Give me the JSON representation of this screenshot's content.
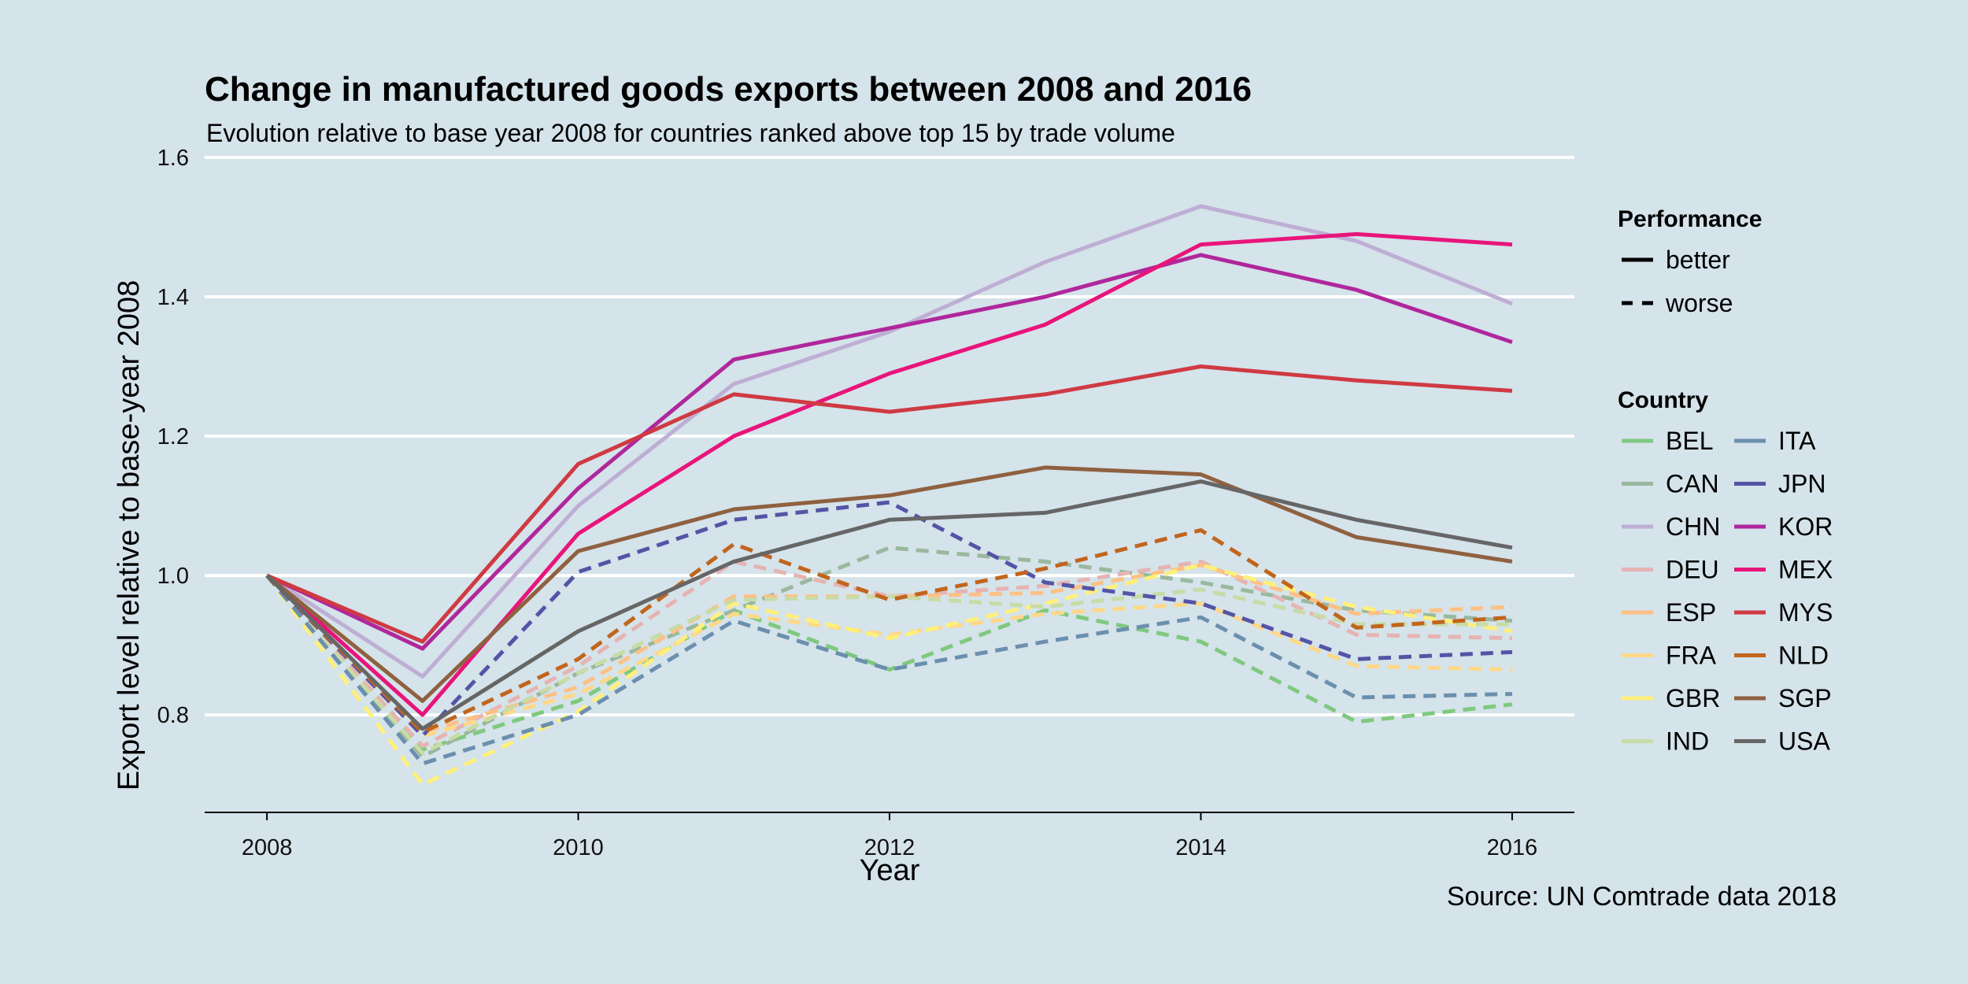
{
  "chart_data": {
    "type": "line",
    "title": "Change in manufactured goods exports between 2008 and 2016",
    "subtitle": "Evolution relative to base year 2008 for countries ranked above top 15 by trade volume",
    "caption": "Source: UN Comtrade data 2018",
    "xlabel": "Year",
    "ylabel": "Export level relative to base-year 2008",
    "xlim": [
      2007.6,
      2016.4
    ],
    "ylim": [
      0.66,
      1.6
    ],
    "x_ticks": [
      2008,
      2010,
      2012,
      2014,
      2016
    ],
    "y_ticks": [
      0.8,
      1.0,
      1.2,
      1.4,
      1.6
    ],
    "y_tick_labels": [
      "0.8",
      "1.0",
      "1.2",
      "1.4",
      "1.6"
    ],
    "grid": "horizontal",
    "legend_position": "right",
    "legend_performance": {
      "title": "Performance",
      "items": [
        {
          "label": "better",
          "style": "solid"
        },
        {
          "label": "worse",
          "style": "dashed"
        }
      ]
    },
    "legend_country_title": "Country",
    "x": [
      2008,
      2009,
      2010,
      2011,
      2012,
      2013,
      2014,
      2015,
      2016
    ],
    "series": [
      {
        "name": "BEL",
        "color": "#7fc97f",
        "style": "dashed",
        "values": [
          1.0,
          0.75,
          0.82,
          0.95,
          0.865,
          0.95,
          0.905,
          0.79,
          0.815
        ]
      },
      {
        "name": "CAN",
        "color": "#9ab89e",
        "style": "dashed",
        "values": [
          1.0,
          0.74,
          0.86,
          0.95,
          1.04,
          1.02,
          0.99,
          0.95,
          0.935
        ]
      },
      {
        "name": "CHN",
        "color": "#beaed4",
        "style": "solid",
        "values": [
          1.0,
          0.855,
          1.1,
          1.275,
          1.35,
          1.45,
          1.53,
          1.48,
          1.39
        ]
      },
      {
        "name": "DEU",
        "color": "#e6b3b3",
        "style": "dashed",
        "values": [
          1.0,
          0.755,
          0.87,
          1.02,
          0.97,
          0.985,
          1.02,
          0.915,
          0.91
        ]
      },
      {
        "name": "ESP",
        "color": "#fdc086",
        "style": "dashed",
        "values": [
          1.0,
          0.775,
          0.84,
          0.97,
          0.97,
          0.975,
          1.015,
          0.945,
          0.955
        ]
      },
      {
        "name": "FRA",
        "color": "#fed88a",
        "style": "dashed",
        "values": [
          1.0,
          0.77,
          0.83,
          0.945,
          0.915,
          0.945,
          0.96,
          0.87,
          0.865
        ]
      },
      {
        "name": "GBR",
        "color": "#fff07a",
        "style": "dashed",
        "values": [
          1.0,
          0.7,
          0.805,
          0.96,
          0.91,
          0.96,
          1.015,
          0.955,
          0.92
        ]
      },
      {
        "name": "IND",
        "color": "#c9dba6",
        "style": "dashed",
        "values": [
          1.0,
          0.745,
          0.86,
          0.965,
          0.97,
          0.955,
          0.98,
          0.93,
          0.93
        ]
      },
      {
        "name": "ITA",
        "color": "#6b8fae",
        "style": "dashed",
        "values": [
          1.0,
          0.73,
          0.8,
          0.935,
          0.865,
          0.905,
          0.94,
          0.825,
          0.83
        ]
      },
      {
        "name": "JPN",
        "color": "#5454a6",
        "style": "dashed",
        "values": [
          1.0,
          0.77,
          1.005,
          1.08,
          1.105,
          0.99,
          0.96,
          0.88,
          0.89
        ]
      },
      {
        "name": "KOR",
        "color": "#b0279c",
        "style": "solid",
        "values": [
          1.0,
          0.895,
          1.125,
          1.31,
          1.355,
          1.4,
          1.46,
          1.41,
          1.335
        ]
      },
      {
        "name": "MEX",
        "color": "#e8157b",
        "style": "solid",
        "values": [
          1.0,
          0.8,
          1.06,
          1.2,
          1.29,
          1.36,
          1.475,
          1.49,
          1.475
        ]
      },
      {
        "name": "MYS",
        "color": "#cf3a43",
        "style": "solid",
        "values": [
          1.0,
          0.905,
          1.16,
          1.26,
          1.235,
          1.26,
          1.3,
          1.28,
          1.265
        ]
      },
      {
        "name": "NLD",
        "color": "#c1651d",
        "style": "dashed",
        "values": [
          1.0,
          0.775,
          0.88,
          1.045,
          0.965,
          1.01,
          1.065,
          0.925,
          0.94
        ]
      },
      {
        "name": "SGP",
        "color": "#8f6140",
        "style": "solid",
        "values": [
          1.0,
          0.82,
          1.035,
          1.095,
          1.115,
          1.155,
          1.145,
          1.055,
          1.02
        ]
      },
      {
        "name": "USA",
        "color": "#666666",
        "style": "solid",
        "values": [
          1.0,
          0.78,
          0.92,
          1.02,
          1.08,
          1.09,
          1.135,
          1.08,
          1.04
        ]
      }
    ]
  }
}
